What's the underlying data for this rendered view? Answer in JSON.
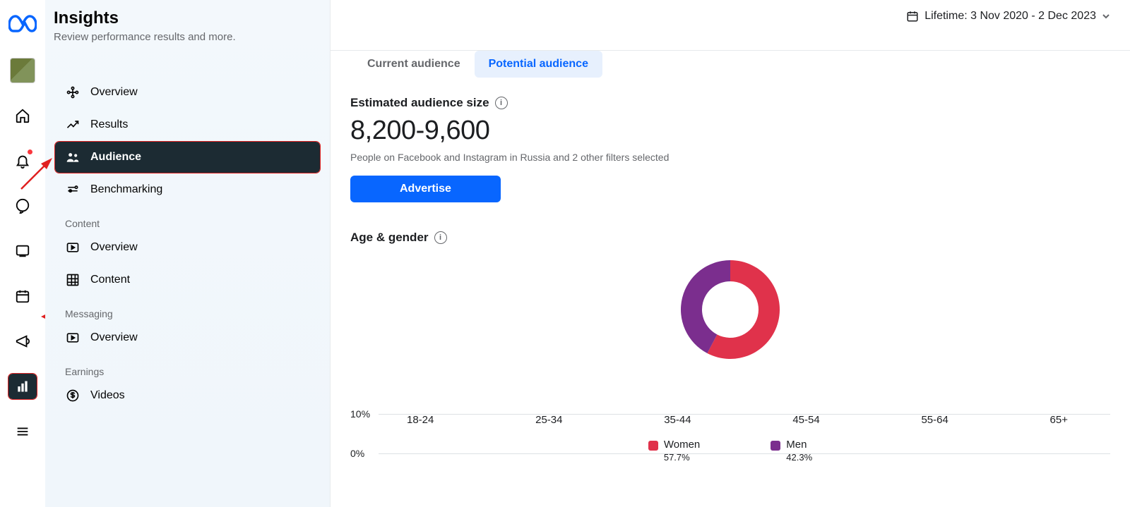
{
  "rail": {
    "items": [
      {
        "key": "home",
        "glyph": "home"
      },
      {
        "key": "bell",
        "glyph": "bell",
        "dot": true
      },
      {
        "key": "chat",
        "glyph": "chat"
      },
      {
        "key": "card",
        "glyph": "card"
      },
      {
        "key": "calendar",
        "glyph": "calendar"
      },
      {
        "key": "mega",
        "glyph": "mega"
      },
      {
        "key": "insights",
        "glyph": "bars",
        "active": true
      },
      {
        "key": "menu",
        "glyph": "menu"
      }
    ]
  },
  "sidebar": {
    "title": "Insights",
    "subtitle": "Review performance results and more.",
    "items": [
      {
        "label": "Overview",
        "icon": "nodes"
      },
      {
        "label": "Results",
        "icon": "trend"
      },
      {
        "label": "Audience",
        "icon": "people",
        "active": true
      },
      {
        "label": "Benchmarking",
        "icon": "benchmark"
      }
    ],
    "content_label": "Content",
    "content_items": [
      {
        "label": "Overview",
        "icon": "media"
      },
      {
        "label": "Content",
        "icon": "grid"
      }
    ],
    "messaging_label": "Messaging",
    "messaging_items": [
      {
        "label": "Overview",
        "icon": "media"
      }
    ],
    "earnings_label": "Earnings",
    "earnings_items": [
      {
        "label": "Videos",
        "icon": "dollar"
      }
    ]
  },
  "topbar": {
    "date_label": "Lifetime: 3 Nov 2020 - 2 Dec 2023"
  },
  "tabs": {
    "current": "Current audience",
    "potential": "Potential audience"
  },
  "audience": {
    "size_label": "Estimated audience size",
    "size_value": "8,200-9,600",
    "size_sub": "People on Facebook and Instagram in Russia and 2 other filters selected",
    "advertise": "Advertise",
    "age_gender_label": "Age & gender",
    "donut": {
      "women_pct": 57.7,
      "men_pct": 42.3,
      "women_color": "#e0324b",
      "men_color": "#7b2e8e",
      "inner_radius": 40,
      "outer_radius": 70
    },
    "bar": {
      "y_ticks": [
        "10%",
        "0%"
      ],
      "x_labels": [
        "18-24",
        "25-34",
        "35-44",
        "45-54",
        "55-64",
        "65+"
      ],
      "grid_color": "#dde1e4"
    },
    "legend": {
      "women_label": "Women",
      "women_pct": "57.7%",
      "men_label": "Men",
      "men_pct": "42.3%"
    }
  },
  "colors": {
    "accent": "#0866ff",
    "text_muted": "#65676b"
  }
}
